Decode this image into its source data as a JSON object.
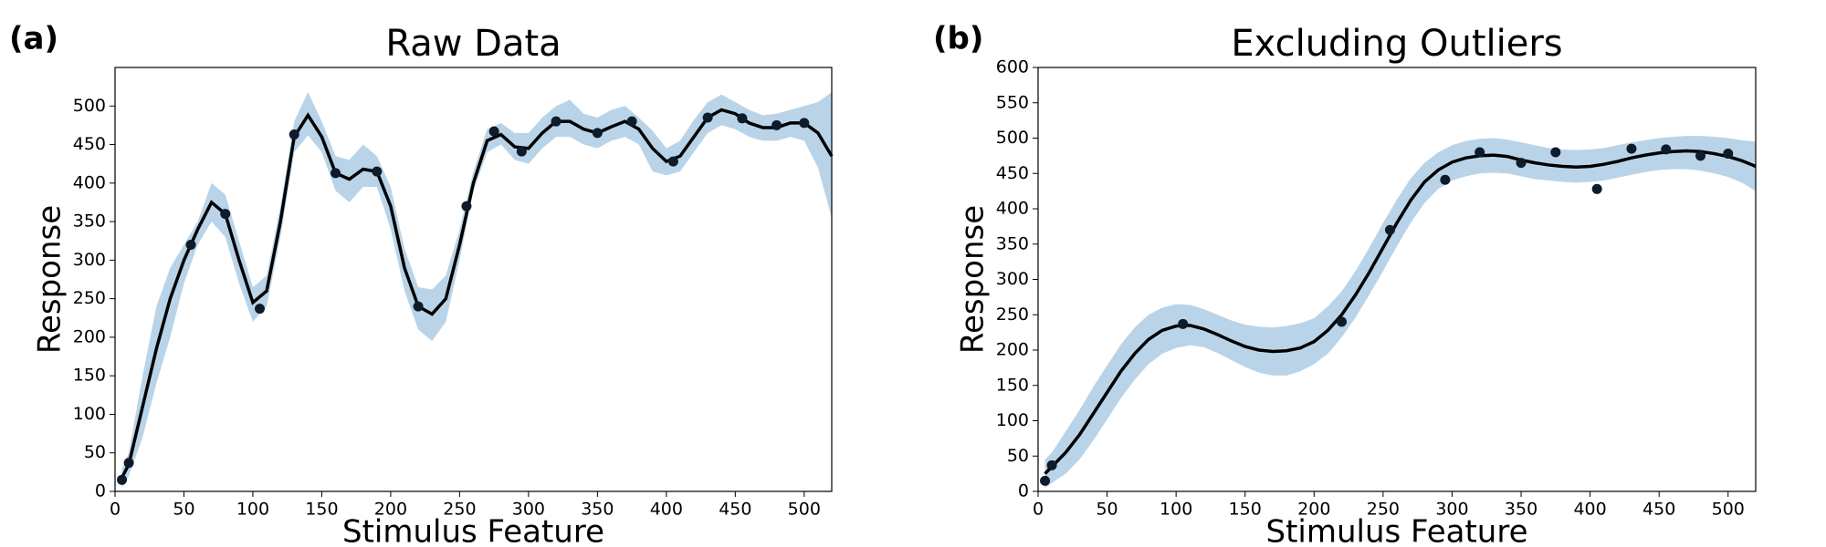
{
  "chart_data": [
    {
      "type": "line",
      "label": "(a)",
      "title": "Raw Data",
      "xlabel": "Stimulus Feature",
      "ylabel": "Response",
      "xlim": [
        0,
        520
      ],
      "ylim": [
        0,
        550
      ],
      "xticks": [
        0,
        50,
        100,
        150,
        200,
        250,
        300,
        350,
        400,
        450,
        500
      ],
      "yticks": [
        0,
        50,
        100,
        150,
        200,
        250,
        300,
        350,
        400,
        450,
        500
      ],
      "x": [
        5,
        10,
        20,
        30,
        40,
        50,
        60,
        70,
        80,
        90,
        100,
        110,
        120,
        130,
        140,
        150,
        160,
        170,
        180,
        190,
        200,
        210,
        220,
        230,
        240,
        250,
        260,
        270,
        280,
        290,
        300,
        310,
        320,
        330,
        340,
        350,
        360,
        370,
        380,
        390,
        400,
        410,
        420,
        430,
        440,
        450,
        460,
        470,
        480,
        490,
        500,
        510,
        520
      ],
      "fit": {
        "color": "#000000",
        "values": [
          18,
          35,
          110,
          185,
          250,
          300,
          340,
          375,
          360,
          300,
          245,
          260,
          350,
          460,
          488,
          460,
          413,
          405,
          418,
          415,
          370,
          290,
          240,
          230,
          250,
          320,
          400,
          455,
          463,
          447,
          445,
          465,
          480,
          480,
          470,
          465,
          473,
          480,
          470,
          445,
          428,
          435,
          460,
          485,
          495,
          490,
          478,
          472,
          472,
          478,
          478,
          465,
          435
        ]
      },
      "band": {
        "color": "#b9d4e8",
        "lower": [
          5,
          20,
          70,
          140,
          200,
          270,
          320,
          350,
          330,
          270,
          220,
          240,
          330,
          440,
          462,
          440,
          390,
          375,
          395,
          395,
          340,
          260,
          210,
          195,
          220,
          300,
          390,
          440,
          450,
          430,
          425,
          445,
          460,
          460,
          450,
          445,
          455,
          460,
          450,
          415,
          410,
          415,
          440,
          465,
          475,
          470,
          460,
          455,
          455,
          460,
          455,
          420,
          355
        ],
        "upper": [
          30,
          50,
          150,
          240,
          290,
          320,
          350,
          400,
          385,
          325,
          265,
          280,
          370,
          480,
          518,
          480,
          435,
          430,
          450,
          435,
          395,
          315,
          265,
          262,
          280,
          340,
          415,
          470,
          478,
          465,
          465,
          485,
          500,
          508,
          490,
          485,
          495,
          500,
          485,
          468,
          445,
          455,
          482,
          505,
          515,
          505,
          495,
          488,
          490,
          495,
          500,
          505,
          518
        ]
      },
      "points": {
        "color": "#0d1b2a",
        "x": [
          5,
          10,
          55,
          80,
          105,
          130,
          160,
          190,
          220,
          255,
          275,
          295,
          320,
          350,
          375,
          405,
          430,
          455,
          480,
          500
        ],
        "values": [
          15,
          37,
          320,
          360,
          237,
          463,
          413,
          415,
          240,
          370,
          467,
          441,
          480,
          465,
          480,
          428,
          485,
          484,
          475,
          478
        ]
      }
    },
    {
      "type": "line",
      "label": "(b)",
      "title": "Excluding Outliers",
      "xlabel": "Stimulus Feature",
      "ylabel": "Response",
      "xlim": [
        0,
        520
      ],
      "ylim": [
        0,
        600
      ],
      "xticks": [
        0,
        50,
        100,
        150,
        200,
        250,
        300,
        350,
        400,
        450,
        500
      ],
      "yticks": [
        0,
        50,
        100,
        150,
        200,
        250,
        300,
        350,
        400,
        450,
        500,
        550,
        600
      ],
      "x": [
        5,
        10,
        20,
        30,
        40,
        50,
        60,
        70,
        80,
        90,
        100,
        110,
        120,
        130,
        140,
        150,
        160,
        170,
        180,
        190,
        200,
        210,
        220,
        230,
        240,
        250,
        260,
        270,
        280,
        290,
        300,
        310,
        320,
        330,
        340,
        350,
        360,
        370,
        380,
        390,
        400,
        410,
        420,
        430,
        440,
        450,
        460,
        470,
        480,
        490,
        500,
        510,
        520
      ],
      "fit": {
        "color": "#000000",
        "values": [
          25,
          35,
          55,
          80,
          110,
          140,
          170,
          195,
          215,
          228,
          234,
          235,
          230,
          222,
          213,
          205,
          200,
          198,
          199,
          203,
          212,
          228,
          250,
          278,
          310,
          345,
          380,
          412,
          438,
          455,
          466,
          472,
          475,
          476,
          474,
          469,
          465,
          462,
          460,
          459,
          460,
          463,
          467,
          472,
          476,
          479,
          481,
          482,
          481,
          478,
          474,
          468,
          460
        ]
      },
      "band": {
        "color": "#b9d4e8",
        "lower": [
          5,
          12,
          25,
          45,
          72,
          102,
          132,
          158,
          180,
          195,
          203,
          207,
          204,
          196,
          186,
          176,
          168,
          164,
          164,
          170,
          180,
          195,
          218,
          246,
          278,
          312,
          347,
          380,
          408,
          428,
          440,
          446,
          450,
          451,
          450,
          446,
          442,
          440,
          438,
          437,
          438,
          440,
          444,
          448,
          452,
          455,
          456,
          456,
          454,
          450,
          445,
          437,
          425
        ],
        "upper": [
          45,
          55,
          85,
          115,
          148,
          178,
          208,
          232,
          250,
          260,
          265,
          264,
          258,
          250,
          242,
          236,
          233,
          232,
          234,
          238,
          245,
          262,
          283,
          312,
          345,
          380,
          413,
          443,
          465,
          480,
          490,
          496,
          499,
          500,
          498,
          494,
          490,
          486,
          484,
          483,
          484,
          486,
          490,
          494,
          497,
          500,
          502,
          503,
          503,
          502,
          500,
          497,
          495
        ]
      },
      "points": {
        "color": "#0d1b2a",
        "x": [
          5,
          10,
          105,
          220,
          255,
          295,
          320,
          350,
          375,
          405,
          430,
          455,
          480,
          500
        ],
        "values": [
          15,
          37,
          237,
          240,
          370,
          441,
          480,
          465,
          480,
          428,
          485,
          484,
          475,
          478
        ]
      }
    }
  ]
}
